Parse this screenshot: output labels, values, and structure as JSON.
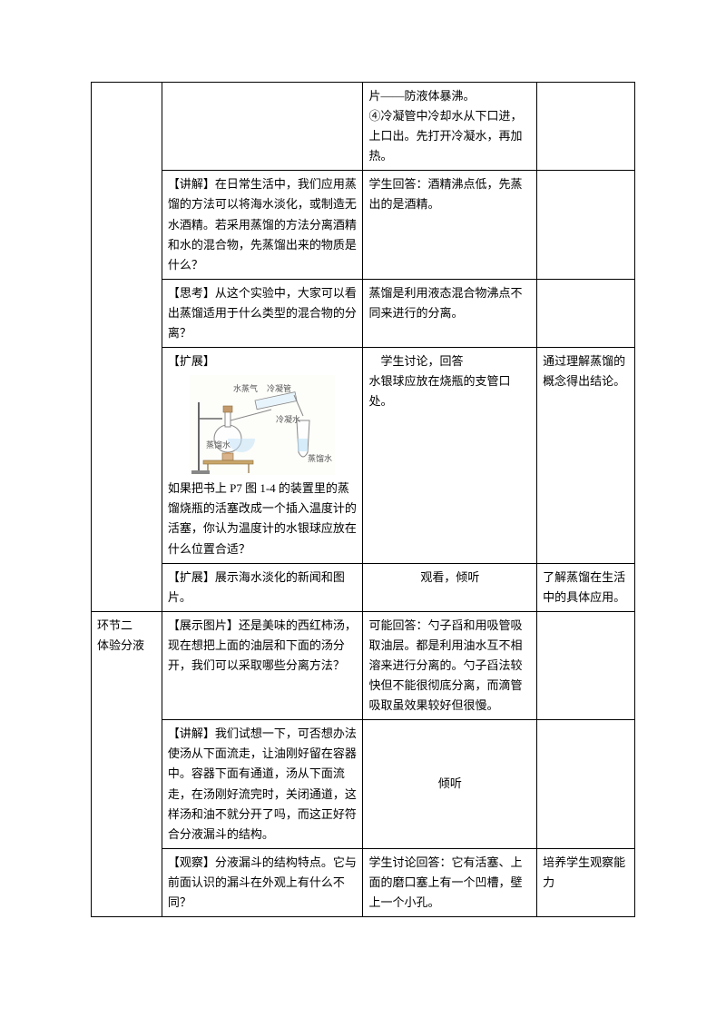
{
  "rows": [
    {
      "col1": "",
      "col2": "",
      "col3": "片——防液体暴沸。\n④冷凝管中冷却水从下口进，上口出。先打开冷凝水，再加热。",
      "col4": ""
    },
    {
      "col1": "",
      "col2": "【讲解】在日常生活中，我们应用蒸馏的方法可以将海水淡化，或制造无水酒精。若采用蒸馏的方法分离酒精和水的混合物，先蒸馏出来的物质是什么？",
      "col3": "学生回答：酒精沸点低，先蒸出的是酒精。",
      "col4": ""
    },
    {
      "col1": "",
      "col2": "【思考】从这个实验中，大家可以看出蒸馏适用于什么类型的混合物的分离？",
      "col3": "蒸馏是利用液态混合物沸点不同来进行的分离。",
      "col4": ""
    },
    {
      "col1": "",
      "col2_pre": "【扩展】",
      "col2_post": "如果把书上 P7 图 1-4 的装置里的蒸馏烧瓶的活塞改成一个插入温度计的活塞，你认为温度计的水银球应放在什么位置合适？",
      "col3": "学生讨论，回答\n水银球应放在烧瓶的支管口处。",
      "col4": "通过理解蒸馏的概念得出结论。",
      "hasDiagram": true,
      "diagram": {
        "labels": {
          "steam": "水蒸气",
          "condenser": "冷凝管",
          "cold": "冷凝水",
          "flask": "蒸馏水",
          "out": "蒸馏水"
        }
      }
    },
    {
      "col1": "",
      "col2": "【扩展】展示海水淡化的新闻和图片。",
      "col3": "观看，倾听",
      "col3_center": true,
      "col4": "了解蒸馏在生活中的具体应用。"
    },
    {
      "col1": "环节二\n体验分液",
      "col2": "【展示图片】还是美味的西红柿汤，现在想把上面的油层和下面的汤分开，我们可以采取哪些分离方法？",
      "col3": "可能回答：勺子舀和用吸管吸取油层。都是利用油水互不相溶来进行分离的。勺子舀法较快但不能很彻底分离，而滴管吸取虽效果较好但很慢。",
      "col4": ""
    },
    {
      "col1": "",
      "col2": "【讲解】我们试想一下，可否想办法使汤从下面流走，让油刚好留在容器中。容器下面有通道，汤从下面流走，在汤刚好流完时，关闭通道，这样汤和油不就分开了吗，而这正好符合分液漏斗的结构。",
      "col3": "倾听",
      "col3_center": true,
      "col3_vcenter": true,
      "col4": ""
    },
    {
      "col1": "",
      "col2": "【观察】分液漏斗的结构特点。它与前面认识的漏斗在外观上有什么不同？",
      "col3": "学生讨论回答：它有活塞、上面的磨口塞上有一个凹槽，壁上一个小孔。",
      "col4": "培养学生观察能力"
    }
  ]
}
